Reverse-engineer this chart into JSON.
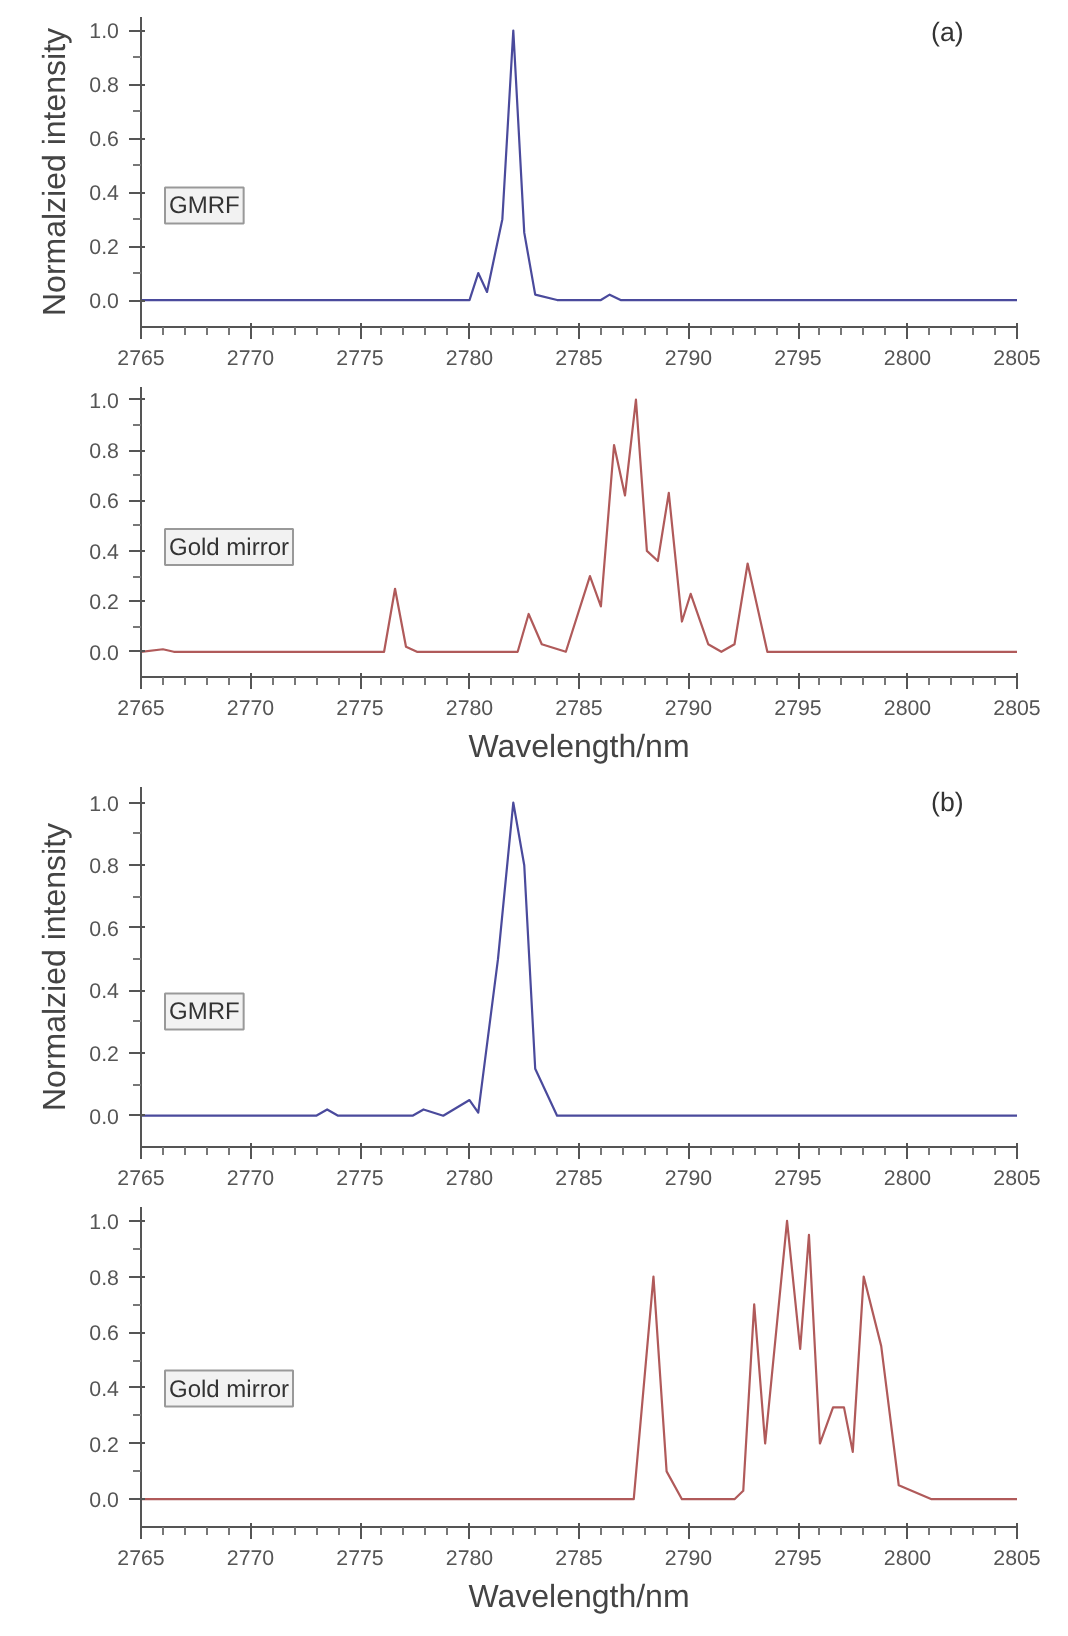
{
  "chart_data": [
    {
      "type": "line",
      "ylabel": "Normalzied intensity",
      "annotations": [
        "(a)"
      ],
      "xlim": [
        2765,
        2805
      ],
      "xticks": [
        2765,
        2770,
        2775,
        2780,
        2785,
        2790,
        2795,
        2800,
        2805
      ],
      "ylim": [
        -0.1,
        1.05
      ],
      "yticks": [
        {
          "value": 0,
          "label": "0.0"
        },
        {
          "value": 0.2,
          "label": "0.2"
        },
        {
          "value": 0.4,
          "label": "0.4"
        },
        {
          "value": 0.6,
          "label": "0.6"
        },
        {
          "value": 0.8,
          "label": "0.8"
        },
        {
          "value": 1,
          "label": "1.0"
        }
      ],
      "grid": false,
      "legend": false,
      "series": [
        {
          "name": "GMRF",
          "color": "#4a4a9c",
          "x": [
            2765,
            2780,
            2780.4,
            2780.8,
            2781.5,
            2782,
            2782.5,
            2783,
            2784,
            2786,
            2786.4,
            2786.9,
            2805
          ],
          "values": [
            0,
            0,
            0.1,
            0.03,
            0.3,
            1.0,
            0.25,
            0.02,
            0,
            0,
            0.02,
            0,
            0
          ]
        }
      ]
    },
    {
      "type": "line",
      "xlabel": "Wavelength/nm",
      "xlim": [
        2765,
        2805
      ],
      "xticks": [
        2765,
        2770,
        2775,
        2780,
        2785,
        2790,
        2795,
        2800,
        2805
      ],
      "ylim": [
        -0.1,
        1.05
      ],
      "yticks": [
        {
          "value": 0,
          "label": "0.0"
        },
        {
          "value": 0.2,
          "label": "0.2"
        },
        {
          "value": 0.4,
          "label": "0.4"
        },
        {
          "value": 0.6,
          "label": "0.6"
        },
        {
          "value": 0.8,
          "label": "0.8"
        },
        {
          "value": 1,
          "label": "1.0"
        }
      ],
      "grid": false,
      "legend": false,
      "series": [
        {
          "name": "Gold mirror",
          "color": "#b05a5a",
          "x": [
            2765,
            2766,
            2766.5,
            2776.1,
            2776.6,
            2777.1,
            2777.6,
            2782.2,
            2782.7,
            2783.3,
            2784.4,
            2785.5,
            2786.0,
            2786.6,
            2787.1,
            2787.6,
            2788.1,
            2788.6,
            2789.1,
            2789.7,
            2790.1,
            2790.9,
            2791.5,
            2792.1,
            2792.7,
            2793.6,
            2805
          ],
          "values": [
            0,
            0.01,
            0,
            0,
            0.25,
            0.02,
            0,
            0,
            0.15,
            0.03,
            0,
            0.3,
            0.18,
            0.82,
            0.62,
            1.0,
            0.4,
            0.36,
            0.63,
            0.12,
            0.23,
            0.03,
            0,
            0.03,
            0.35,
            0,
            0
          ]
        }
      ]
    },
    {
      "type": "line",
      "ylabel": "Normalzied intensity",
      "annotations": [
        "(b)"
      ],
      "xlim": [
        2765,
        2805
      ],
      "xticks": [
        2765,
        2770,
        2775,
        2780,
        2785,
        2790,
        2795,
        2800,
        2805
      ],
      "ylim": [
        -0.1,
        1.05
      ],
      "yticks": [
        {
          "value": 0,
          "label": "0.0"
        },
        {
          "value": 0.2,
          "label": "0.2"
        },
        {
          "value": 0.4,
          "label": "0.4"
        },
        {
          "value": 0.6,
          "label": "0.6"
        },
        {
          "value": 0.8,
          "label": "0.8"
        },
        {
          "value": 1,
          "label": "1.0"
        }
      ],
      "grid": false,
      "legend": false,
      "series": [
        {
          "name": "GMRF",
          "color": "#4a4a9c",
          "x": [
            2765,
            2773,
            2773.5,
            2774,
            2777.4,
            2777.9,
            2778.8,
            2780,
            2780.4,
            2781.3,
            2782,
            2782.5,
            2783,
            2784,
            2805
          ],
          "values": [
            0,
            0,
            0.02,
            0,
            0,
            0.02,
            0,
            0.05,
            0.01,
            0.5,
            1.0,
            0.8,
            0.15,
            0,
            0
          ]
        }
      ]
    },
    {
      "type": "line",
      "xlabel": "Wavelength/nm",
      "xlim": [
        2765,
        2805
      ],
      "xticks": [
        2765,
        2770,
        2775,
        2780,
        2785,
        2790,
        2795,
        2800,
        2805
      ],
      "ylim": [
        -0.1,
        1.05
      ],
      "yticks": [
        {
          "value": 0,
          "label": "0.0"
        },
        {
          "value": 0.2,
          "label": "0.2"
        },
        {
          "value": 0.4,
          "label": "0.4"
        },
        {
          "value": 0.6,
          "label": "0.6"
        },
        {
          "value": 0.8,
          "label": "0.8"
        },
        {
          "value": 1,
          "label": "1.0"
        }
      ],
      "grid": false,
      "legend": false,
      "series": [
        {
          "name": "Gold mirror",
          "color": "#b05a5a",
          "x": [
            2765,
            2787.5,
            2788.4,
            2789,
            2789.7,
            2792.1,
            2792.5,
            2793,
            2793.5,
            2794.5,
            2795.1,
            2795.5,
            2796,
            2796.6,
            2797.1,
            2797.5,
            2798,
            2798.8,
            2799.6,
            2801.1,
            2805
          ],
          "values": [
            0,
            0,
            0.8,
            0.1,
            0,
            0,
            0.03,
            0.7,
            0.2,
            1.0,
            0.54,
            0.95,
            0.2,
            0.33,
            0.33,
            0.17,
            0.8,
            0.55,
            0.05,
            0,
            0
          ]
        }
      ]
    }
  ]
}
